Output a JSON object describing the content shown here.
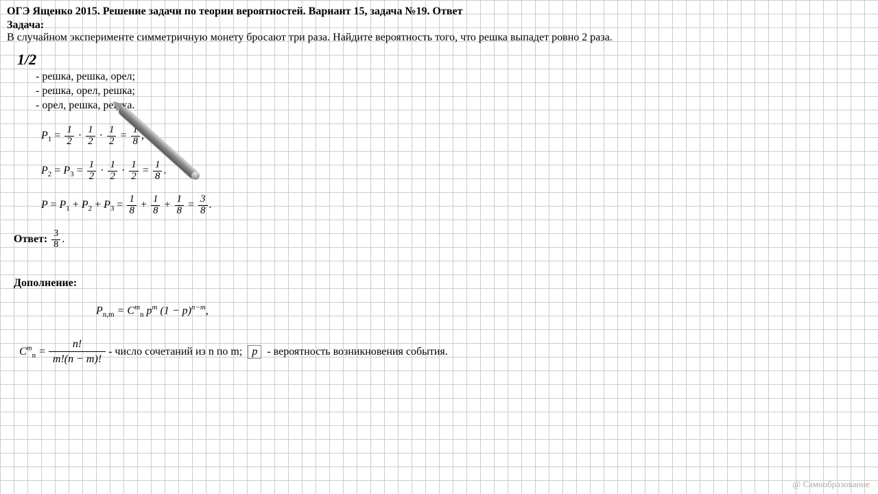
{
  "title": "ОГЭ Ященко 2015. Решение задачи по теории вероятностей. Вариант 15, задача №19. Ответ",
  "problem_label": "Задача:",
  "problem_text": "В случайном эксперименте симметричную монету бросают три раза. Найдите вероятность того, что решка выпадет ровно 2 раза.",
  "handwritten": "1/2",
  "outcomes": [
    "- решка, решка, орел;",
    "- решка, орел, решка;",
    "- орел, решка, решка."
  ],
  "eq1_prefix": "P",
  "eq1_sub": "1",
  "eq1_fracs": [
    {
      "num": "1",
      "den": "2"
    },
    {
      "num": "1",
      "den": "2"
    },
    {
      "num": "1",
      "den": "2"
    }
  ],
  "eq1_result": {
    "num": "1",
    "den": "8"
  },
  "eq1_tail": ",",
  "eq2_p2sub": "2",
  "eq2_p3sub": "3",
  "eq2_fracs": [
    {
      "num": "1",
      "den": "2"
    },
    {
      "num": "1",
      "den": "2"
    },
    {
      "num": "1",
      "den": "2"
    }
  ],
  "eq2_result": {
    "num": "1",
    "den": "8"
  },
  "eq2_tail": ".",
  "eq3_lhs": "P",
  "eq3_terms": [
    "1",
    "2",
    "3"
  ],
  "eq3_fracs": [
    {
      "num": "1",
      "den": "8"
    },
    {
      "num": "1",
      "den": "8"
    },
    {
      "num": "1",
      "den": "8"
    }
  ],
  "eq3_result": {
    "num": "3",
    "den": "8"
  },
  "eq3_tail": ".",
  "answer_label": "Ответ:",
  "answer_frac": {
    "num": "3",
    "den": "8"
  },
  "answer_tail": ".",
  "addition_label": "Дополнение:",
  "addition_eq_left": "P",
  "addition_eq_sub": "n,m",
  "addition_eq_mid_C": "C",
  "addition_eq_C_sup": "m",
  "addition_eq_C_sub": "n",
  "addition_eq_pm": "p",
  "addition_eq_pm_sup": "m",
  "addition_eq_paren": "(1 − p)",
  "addition_eq_paren_sup": "n−m",
  "addition_eq_tail": ",",
  "comb_C": "C",
  "comb_C_sup": "m",
  "comb_C_sub": "n",
  "comb_frac_num": "n!",
  "comb_frac_den": "m!(n − m)!",
  "comb_text1": " - число сочетаний из n по m; ",
  "comb_p": "p",
  "comb_text2": " - вероятность возникновения события.",
  "watermark": "@ Самообразование"
}
